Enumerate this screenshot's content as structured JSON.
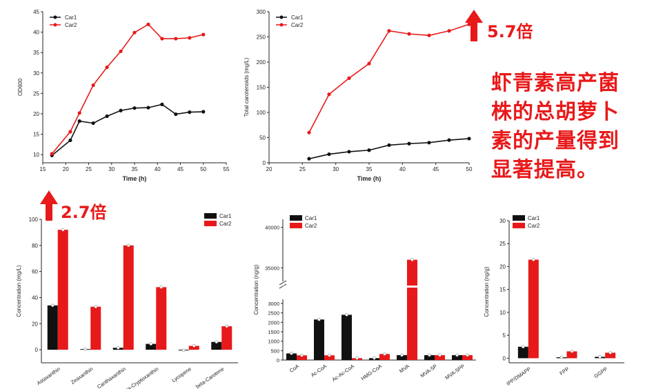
{
  "annotations": {
    "fold_top": "5.7倍",
    "fold_bottom": "2.7倍",
    "summary": "虾青素高产菌株的总胡萝卜素的产量得到显著提高。"
  },
  "colors": {
    "Car1": "#111111",
    "Car2": "#e8191a",
    "accent": "#e8191a"
  },
  "chart_data": [
    {
      "type": "line",
      "title": "",
      "xlabel": "Time (h)",
      "ylabel": "OD600",
      "xlim": [
        15,
        55
      ],
      "ylim": [
        8,
        45
      ],
      "xticks": [
        15,
        20,
        25,
        30,
        35,
        40,
        45,
        50,
        55
      ],
      "yticks": [
        10,
        15,
        20,
        25,
        30,
        35,
        40,
        45
      ],
      "legend": "top-left",
      "series": [
        {
          "name": "Car1",
          "x": [
            17,
            21,
            23,
            26,
            29,
            32,
            35,
            38,
            41,
            44,
            47,
            50
          ],
          "y": [
            9.8,
            13.5,
            18.2,
            17.7,
            19.4,
            20.8,
            21.4,
            21.5,
            22.3,
            19.9,
            20.4,
            20.5
          ]
        },
        {
          "name": "Car2",
          "x": [
            17,
            21,
            23,
            26,
            29,
            32,
            35,
            38,
            41,
            44,
            47,
            50
          ],
          "y": [
            10.2,
            15.6,
            20.2,
            27.0,
            31.4,
            35.3,
            39.9,
            41.9,
            38.4,
            38.4,
            38.6,
            39.4
          ]
        }
      ]
    },
    {
      "type": "line",
      "title": "",
      "xlabel": "Time (h)",
      "ylabel": "Total carotenoids (mg/L)",
      "xlim": [
        20,
        50
      ],
      "ylim": [
        0,
        300
      ],
      "xticks": [
        20,
        25,
        30,
        35,
        40,
        45,
        50
      ],
      "yticks": [
        0,
        50,
        100,
        150,
        200,
        250,
        300
      ],
      "legend": "top-left",
      "series": [
        {
          "name": "Car1",
          "x": [
            26,
            29,
            32,
            35,
            38,
            41,
            44,
            47,
            50
          ],
          "y": [
            8,
            17,
            22,
            25,
            35,
            38,
            40,
            45,
            48
          ]
        },
        {
          "name": "Car2",
          "x": [
            26,
            29,
            32,
            35,
            38,
            41,
            44,
            47,
            50
          ],
          "y": [
            60,
            136,
            168,
            197,
            262,
            256,
            253,
            262,
            275
          ]
        }
      ]
    },
    {
      "type": "bar",
      "title": "",
      "xlabel": "",
      "ylabel": "Concentration (mg/L)",
      "ylim": [
        -10,
        100
      ],
      "yticks": [
        0,
        20,
        40,
        60,
        80,
        100
      ],
      "legend": "top-right",
      "categories": [
        "Astaxanthin",
        "Zeaxanthin",
        "Canthaxanthin",
        "beta-Cryptoxanthin",
        "Lycopene",
        "beta-Carotene"
      ],
      "series": [
        {
          "name": "Car1",
          "values": [
            34,
            0.5,
            1.5,
            4.5,
            -0.5,
            6
          ]
        },
        {
          "name": "Car2",
          "values": [
            92,
            33,
            80,
            48,
            3,
            18
          ]
        }
      ]
    },
    {
      "type": "bar",
      "title": "",
      "xlabel": "",
      "ylabel": "Concentration (ng/g)",
      "axis_break": [
        3000,
        34000
      ],
      "yticks_lower": [
        0,
        500,
        1000,
        1500,
        2000,
        2500,
        3000
      ],
      "yticks_upper": [
        35000,
        40000
      ],
      "legend": "top-left",
      "categories": [
        "CoA",
        "Ac-CoA",
        "Ac-Ac-CoA",
        "HMG-CoA",
        "MVA",
        "MVA-5P",
        "MVA-5PP"
      ],
      "series": [
        {
          "name": "Car1",
          "values": [
            350,
            2150,
            2400,
            100,
            0,
            0,
            0
          ]
        },
        {
          "name": "Car2",
          "values": [
            250,
            250,
            100,
            320,
            36000,
            0,
            0
          ]
        }
      ]
    },
    {
      "type": "bar",
      "title": "",
      "xlabel": "",
      "ylabel": "Concentration (ng/g)",
      "ylim": [
        -1,
        30
      ],
      "yticks": [
        0,
        5,
        10,
        15,
        20,
        25,
        30
      ],
      "legend": "top-left",
      "categories": [
        "IPP/DMAPP",
        "FPP",
        "GGPP"
      ],
      "series": [
        {
          "name": "Car1",
          "values": [
            2.5,
            0.2,
            0.3
          ]
        },
        {
          "name": "Car2",
          "values": [
            21.5,
            1.5,
            1.2
          ]
        }
      ]
    }
  ]
}
